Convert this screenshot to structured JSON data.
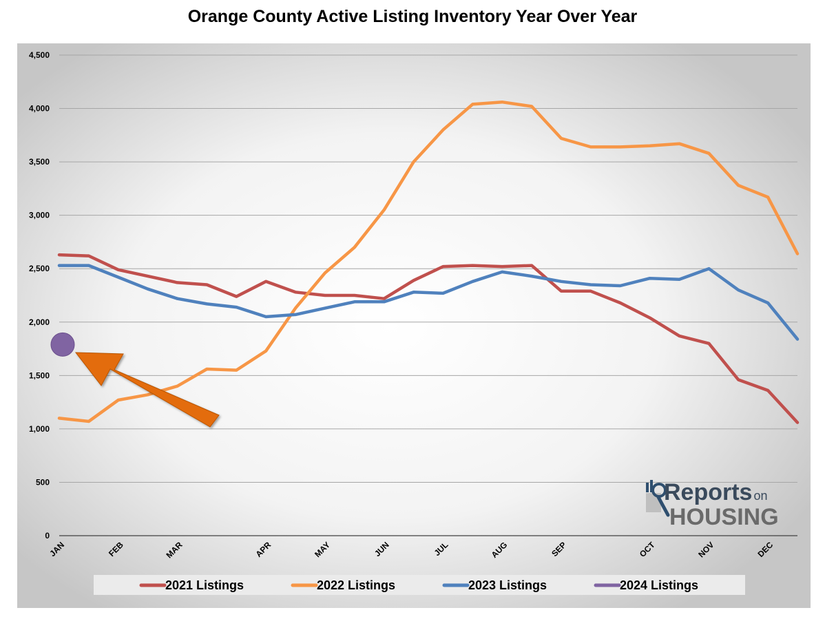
{
  "chart_data": {
    "type": "line",
    "title": "Orange County Active Listing Inventory Year Over Year",
    "xlabel": "",
    "ylabel": "",
    "ylim": [
      0,
      4500
    ],
    "yticks": [
      "0",
      "500",
      "1,000",
      "1,500",
      "2,000",
      "2,500",
      "3,000",
      "3,500",
      "4,000",
      "4,500"
    ],
    "ytick_values": [
      0,
      500,
      1000,
      1500,
      2000,
      2500,
      3000,
      3500,
      4000,
      4500
    ],
    "month_labels": [
      {
        "label": "JAN",
        "week": 0
      },
      {
        "label": "FEB",
        "week": 4
      },
      {
        "label": "MAR",
        "week": 8
      },
      {
        "label": "APR",
        "week": 14
      },
      {
        "label": "MAY",
        "week": 18
      },
      {
        "label": "JUN",
        "week": 22
      },
      {
        "label": "JUL",
        "week": 26
      },
      {
        "label": "AUG",
        "week": 30
      },
      {
        "label": "SEP",
        "week": 34
      },
      {
        "label": "OCT",
        "week": 40
      },
      {
        "label": "NOV",
        "week": 44
      },
      {
        "label": "DEC",
        "week": 48
      }
    ],
    "x_max_week": 50,
    "series": [
      {
        "name": "2021 Listings",
        "color": "#c0504d",
        "x": [
          0,
          2,
          4,
          6,
          8,
          10,
          12,
          14,
          16,
          18,
          20,
          22,
          24,
          26,
          28,
          30,
          32,
          34,
          36,
          38,
          40,
          42,
          44,
          46,
          48,
          50
        ],
        "values": [
          2630,
          2620,
          2490,
          2430,
          2370,
          2350,
          2240,
          2380,
          2280,
          2250,
          2250,
          2220,
          2390,
          2520,
          2530,
          2520,
          2530,
          2290,
          2290,
          2180,
          2040,
          1870,
          1800,
          1460,
          1360,
          1060
        ]
      },
      {
        "name": "2022 Listings",
        "color": "#f79646",
        "x": [
          0,
          2,
          4,
          6,
          8,
          10,
          12,
          14,
          16,
          18,
          20,
          22,
          24,
          26,
          28,
          30,
          32,
          34,
          36,
          38,
          40,
          42,
          44,
          46,
          48,
          50
        ],
        "values": [
          1100,
          1070,
          1270,
          1320,
          1400,
          1560,
          1550,
          1730,
          2130,
          2460,
          2700,
          3050,
          3500,
          3800,
          4040,
          4060,
          4020,
          3720,
          3640,
          3640,
          3650,
          3670,
          3580,
          3280,
          3170,
          2640
        ]
      },
      {
        "name": "2023 Listings",
        "color": "#4f81bd",
        "x": [
          0,
          2,
          4,
          6,
          8,
          10,
          12,
          14,
          16,
          18,
          20,
          22,
          24,
          26,
          28,
          30,
          32,
          34,
          36,
          38,
          40,
          42,
          44,
          46,
          48,
          50
        ],
        "values": [
          2530,
          2530,
          2420,
          2310,
          2220,
          2170,
          2140,
          2050,
          2070,
          2130,
          2190,
          2190,
          2280,
          2270,
          2380,
          2470,
          2430,
          2380,
          2350,
          2340,
          2410,
          2400,
          2500,
          2300,
          2180,
          1840
        ]
      },
      {
        "name": "2024 Listings",
        "color": "#8064a2",
        "x": [
          0
        ],
        "values": [
          1790
        ]
      }
    ],
    "legend": [
      "2021 Listings",
      "2022 Listings",
      "2023 Listings",
      "2024 Listings"
    ],
    "legend_position": "bottom",
    "grid": true
  },
  "annotation": {
    "type": "arrow",
    "color": "#e36c09",
    "points_to": "2024 Listings"
  },
  "logo": {
    "line1": "Reports",
    "line1_suffix": "on",
    "line2": "HOUSING"
  }
}
